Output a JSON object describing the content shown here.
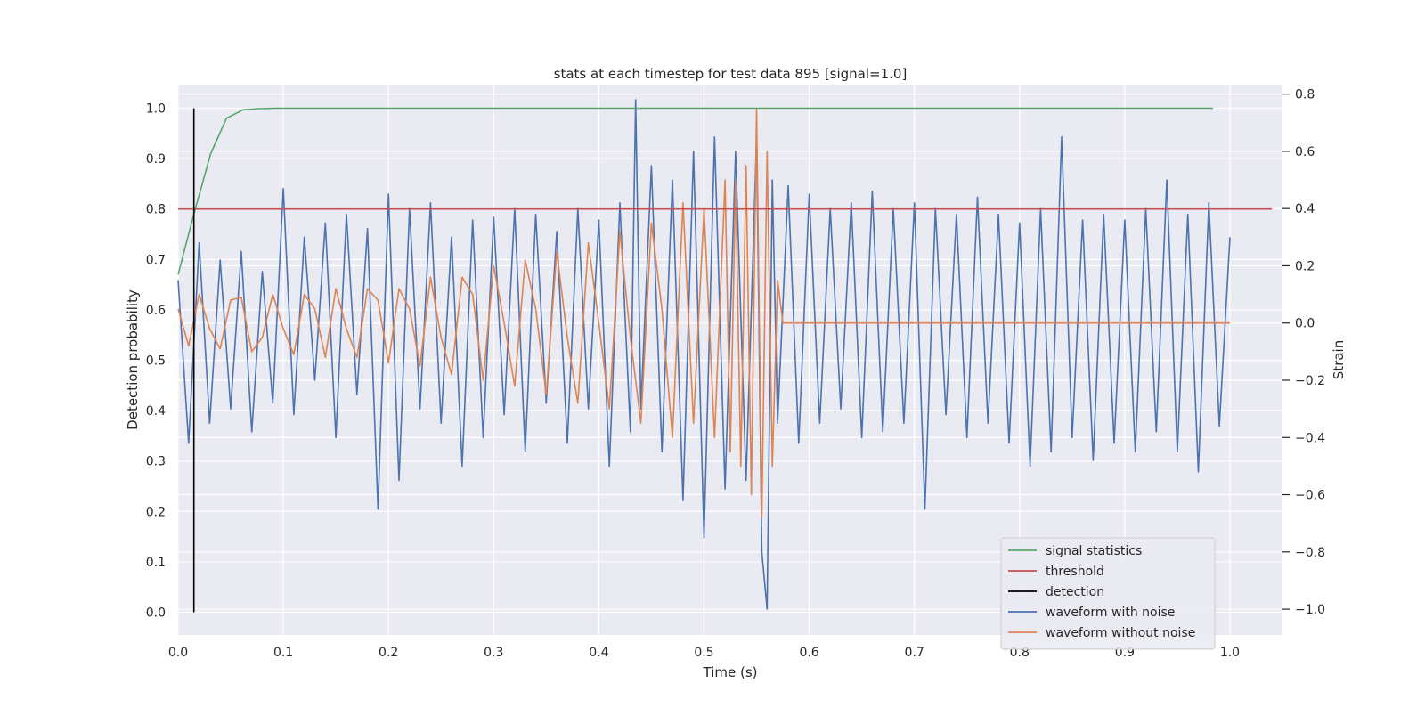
{
  "chart_data": {
    "type": "line",
    "title": "stats at each timestep for test data 895 [signal=1.0]",
    "xlabel": "Time (s)",
    "ylabel_left": "Detection probability",
    "ylabel_right": "Strain",
    "xlim": [
      0.0,
      1.05
    ],
    "ylim_left": [
      -0.045,
      1.045
    ],
    "ylim_right": [
      -1.09,
      0.83
    ],
    "x_ticks": [
      0.0,
      0.1,
      0.2,
      0.3,
      0.4,
      0.5,
      0.6,
      0.7,
      0.8,
      0.9,
      1.0
    ],
    "x_tick_labels": [
      "0.0",
      "0.1",
      "0.2",
      "0.3",
      "0.4",
      "0.5",
      "0.6",
      "0.7",
      "0.8",
      "0.9",
      "1.0"
    ],
    "y_left_ticks": [
      0.0,
      0.1,
      0.2,
      0.3,
      0.4,
      0.5,
      0.6,
      0.7,
      0.8,
      0.9,
      1.0
    ],
    "y_left_tick_labels": [
      "0.0",
      "0.1",
      "0.2",
      "0.3",
      "0.4",
      "0.5",
      "0.6",
      "0.7",
      "0.8",
      "0.9",
      "1.0"
    ],
    "y_right_ticks": [
      0.8,
      0.6,
      0.4,
      0.2,
      0.0,
      -0.2,
      -0.4,
      -0.6,
      -0.8,
      -1.0
    ],
    "y_right_tick_labels": [
      "0.8",
      "0.6",
      "0.4",
      "0.2",
      "0.0",
      "−0.2",
      "−0.4",
      "−0.6",
      "−0.8",
      "−1.0"
    ],
    "grid": true,
    "legend_position": "lower-right",
    "series": [
      {
        "name": "signal statistics",
        "axis": "left",
        "color": "#55a868",
        "x": [
          0.0,
          0.015,
          0.031,
          0.046,
          0.062,
          0.077,
          0.093,
          0.108,
          0.2,
          0.4,
          0.6,
          0.8,
          0.984
        ],
        "y": [
          0.67,
          0.79,
          0.91,
          0.98,
          0.997,
          0.999,
          1.0,
          1.0,
          1.0,
          1.0,
          1.0,
          1.0,
          1.0
        ]
      },
      {
        "name": "threshold",
        "axis": "left",
        "color": "#c44e52",
        "x": [
          0.0,
          1.04
        ],
        "y": [
          0.8,
          0.8
        ]
      },
      {
        "name": "detection",
        "axis": "left",
        "color": "#000000",
        "x": [
          0.015,
          0.015
        ],
        "y": [
          0.0,
          1.0
        ]
      },
      {
        "name": "waveform with noise",
        "axis": "right",
        "color": "#4c72b0",
        "x": [
          0.0,
          0.01,
          0.02,
          0.03,
          0.04,
          0.05,
          0.06,
          0.07,
          0.08,
          0.09,
          0.1,
          0.11,
          0.12,
          0.13,
          0.14,
          0.15,
          0.16,
          0.17,
          0.18,
          0.19,
          0.2,
          0.21,
          0.22,
          0.23,
          0.24,
          0.25,
          0.26,
          0.27,
          0.28,
          0.29,
          0.3,
          0.31,
          0.32,
          0.33,
          0.34,
          0.35,
          0.36,
          0.37,
          0.38,
          0.39,
          0.4,
          0.41,
          0.42,
          0.43,
          0.435,
          0.44,
          0.45,
          0.46,
          0.47,
          0.48,
          0.49,
          0.5,
          0.51,
          0.52,
          0.53,
          0.54,
          0.55,
          0.555,
          0.56,
          0.565,
          0.57,
          0.58,
          0.59,
          0.6,
          0.61,
          0.62,
          0.63,
          0.64,
          0.65,
          0.66,
          0.67,
          0.68,
          0.69,
          0.7,
          0.71,
          0.72,
          0.73,
          0.74,
          0.75,
          0.76,
          0.77,
          0.78,
          0.79,
          0.8,
          0.81,
          0.82,
          0.83,
          0.84,
          0.85,
          0.86,
          0.87,
          0.88,
          0.89,
          0.9,
          0.91,
          0.92,
          0.93,
          0.94,
          0.95,
          0.96,
          0.97,
          0.98,
          0.99,
          1.0
        ],
        "y": [
          0.15,
          -0.42,
          0.28,
          -0.35,
          0.22,
          -0.3,
          0.25,
          -0.38,
          0.18,
          -0.28,
          0.47,
          -0.32,
          0.3,
          -0.2,
          0.35,
          -0.4,
          0.38,
          -0.25,
          0.33,
          -0.65,
          0.45,
          -0.55,
          0.4,
          -0.3,
          0.42,
          -0.35,
          0.3,
          -0.5,
          0.36,
          -0.4,
          0.37,
          -0.32,
          0.4,
          -0.45,
          0.38,
          -0.28,
          0.32,
          -0.42,
          0.4,
          -0.3,
          0.36,
          -0.5,
          0.42,
          -0.38,
          0.78,
          -0.3,
          0.55,
          -0.45,
          0.5,
          -0.62,
          0.6,
          -0.75,
          0.65,
          -0.58,
          0.6,
          -0.55,
          0.65,
          -0.8,
          -1.0,
          0.5,
          -0.35,
          0.48,
          -0.42,
          0.45,
          -0.35,
          0.4,
          -0.3,
          0.42,
          -0.4,
          0.46,
          -0.38,
          0.4,
          -0.35,
          0.42,
          -0.65,
          0.4,
          -0.32,
          0.38,
          -0.4,
          0.44,
          -0.35,
          0.38,
          -0.42,
          0.35,
          -0.5,
          0.4,
          -0.45,
          0.65,
          -0.4,
          0.36,
          -0.48,
          0.38,
          -0.42,
          0.36,
          -0.45,
          0.4,
          -0.38,
          0.5,
          -0.45,
          0.38,
          -0.52,
          0.42,
          -0.36,
          0.3
        ]
      },
      {
        "name": "waveform without noise",
        "axis": "right",
        "color": "#dd8452",
        "x": [
          0.0,
          0.01,
          0.02,
          0.03,
          0.04,
          0.05,
          0.06,
          0.07,
          0.08,
          0.09,
          0.1,
          0.11,
          0.12,
          0.13,
          0.14,
          0.15,
          0.16,
          0.17,
          0.18,
          0.19,
          0.2,
          0.21,
          0.22,
          0.23,
          0.24,
          0.25,
          0.26,
          0.27,
          0.28,
          0.29,
          0.3,
          0.31,
          0.32,
          0.33,
          0.34,
          0.35,
          0.36,
          0.37,
          0.38,
          0.39,
          0.4,
          0.41,
          0.42,
          0.43,
          0.44,
          0.45,
          0.46,
          0.47,
          0.48,
          0.49,
          0.5,
          0.51,
          0.52,
          0.525,
          0.53,
          0.535,
          0.54,
          0.545,
          0.55,
          0.555,
          0.56,
          0.565,
          0.57,
          0.575,
          0.6,
          0.7,
          0.8,
          0.9,
          1.0
        ],
        "y": [
          0.05,
          -0.08,
          0.1,
          -0.02,
          -0.09,
          0.08,
          0.09,
          -0.1,
          -0.05,
          0.1,
          -0.02,
          -0.11,
          0.1,
          0.05,
          -0.12,
          0.12,
          -0.02,
          -0.12,
          0.12,
          0.08,
          -0.14,
          0.12,
          0.05,
          -0.15,
          0.16,
          -0.05,
          -0.18,
          0.16,
          0.1,
          -0.2,
          0.2,
          0.0,
          -0.22,
          0.22,
          0.05,
          -0.25,
          0.25,
          -0.05,
          -0.28,
          0.28,
          0.0,
          -0.3,
          0.32,
          -0.05,
          -0.35,
          0.35,
          0.05,
          -0.4,
          0.42,
          -0.35,
          0.4,
          -0.4,
          0.5,
          -0.45,
          0.5,
          -0.5,
          0.55,
          -0.6,
          0.75,
          -0.68,
          0.6,
          -0.5,
          0.15,
          0.0,
          0.0,
          0.0,
          0.0,
          0.0,
          0.0
        ]
      }
    ]
  },
  "legend": {
    "items": [
      {
        "label": "signal statistics",
        "color": "#55a868"
      },
      {
        "label": "threshold",
        "color": "#c44e52"
      },
      {
        "label": "detection",
        "color": "#000000"
      },
      {
        "label": "waveform with noise",
        "color": "#4c72b0"
      },
      {
        "label": "waveform without noise",
        "color": "#dd8452"
      }
    ]
  },
  "colors": {
    "plot_background": "#eaeaf2",
    "grid": "#ffffff",
    "text": "#262626"
  }
}
